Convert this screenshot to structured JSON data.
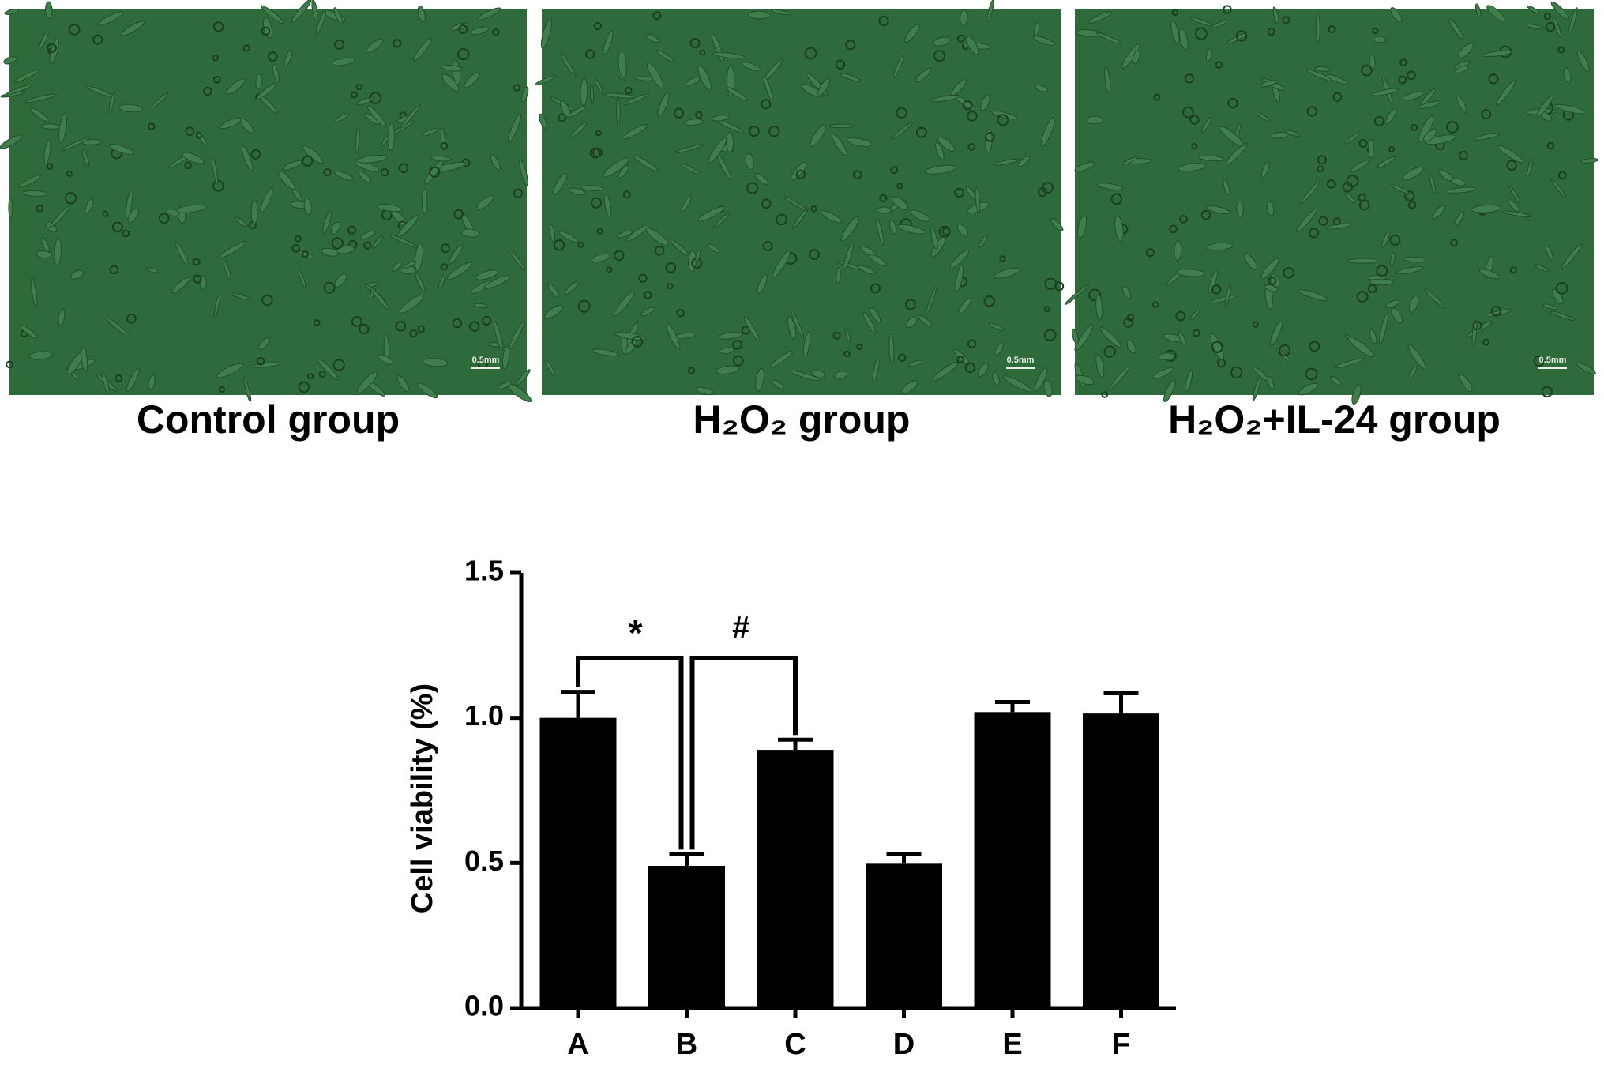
{
  "panels": [
    {
      "label": "Control group",
      "scale_bar": "0.5mm"
    },
    {
      "label": "H₂O₂ group",
      "scale_bar": "0.5mm"
    },
    {
      "label": "H₂O₂+IL-24 group",
      "scale_bar": "0.5mm"
    }
  ],
  "chart_data": {
    "type": "bar",
    "y_label": "Cell viability (%)",
    "categories": [
      "A",
      "B",
      "C",
      "D",
      "E",
      "F"
    ],
    "values": [
      1.0,
      0.49,
      0.89,
      0.5,
      1.02,
      1.015
    ],
    "errors": [
      0.09,
      0.04,
      0.035,
      0.03,
      0.035,
      0.07
    ],
    "color": "#000000",
    "ylim": [
      0,
      1.5
    ],
    "yticks": [
      {
        "value": 0,
        "label": "0.0"
      },
      0.5,
      {
        "value": 1,
        "label": "1.0"
      },
      1.5
    ],
    "annotations": [
      "*",
      "#"
    ]
  }
}
